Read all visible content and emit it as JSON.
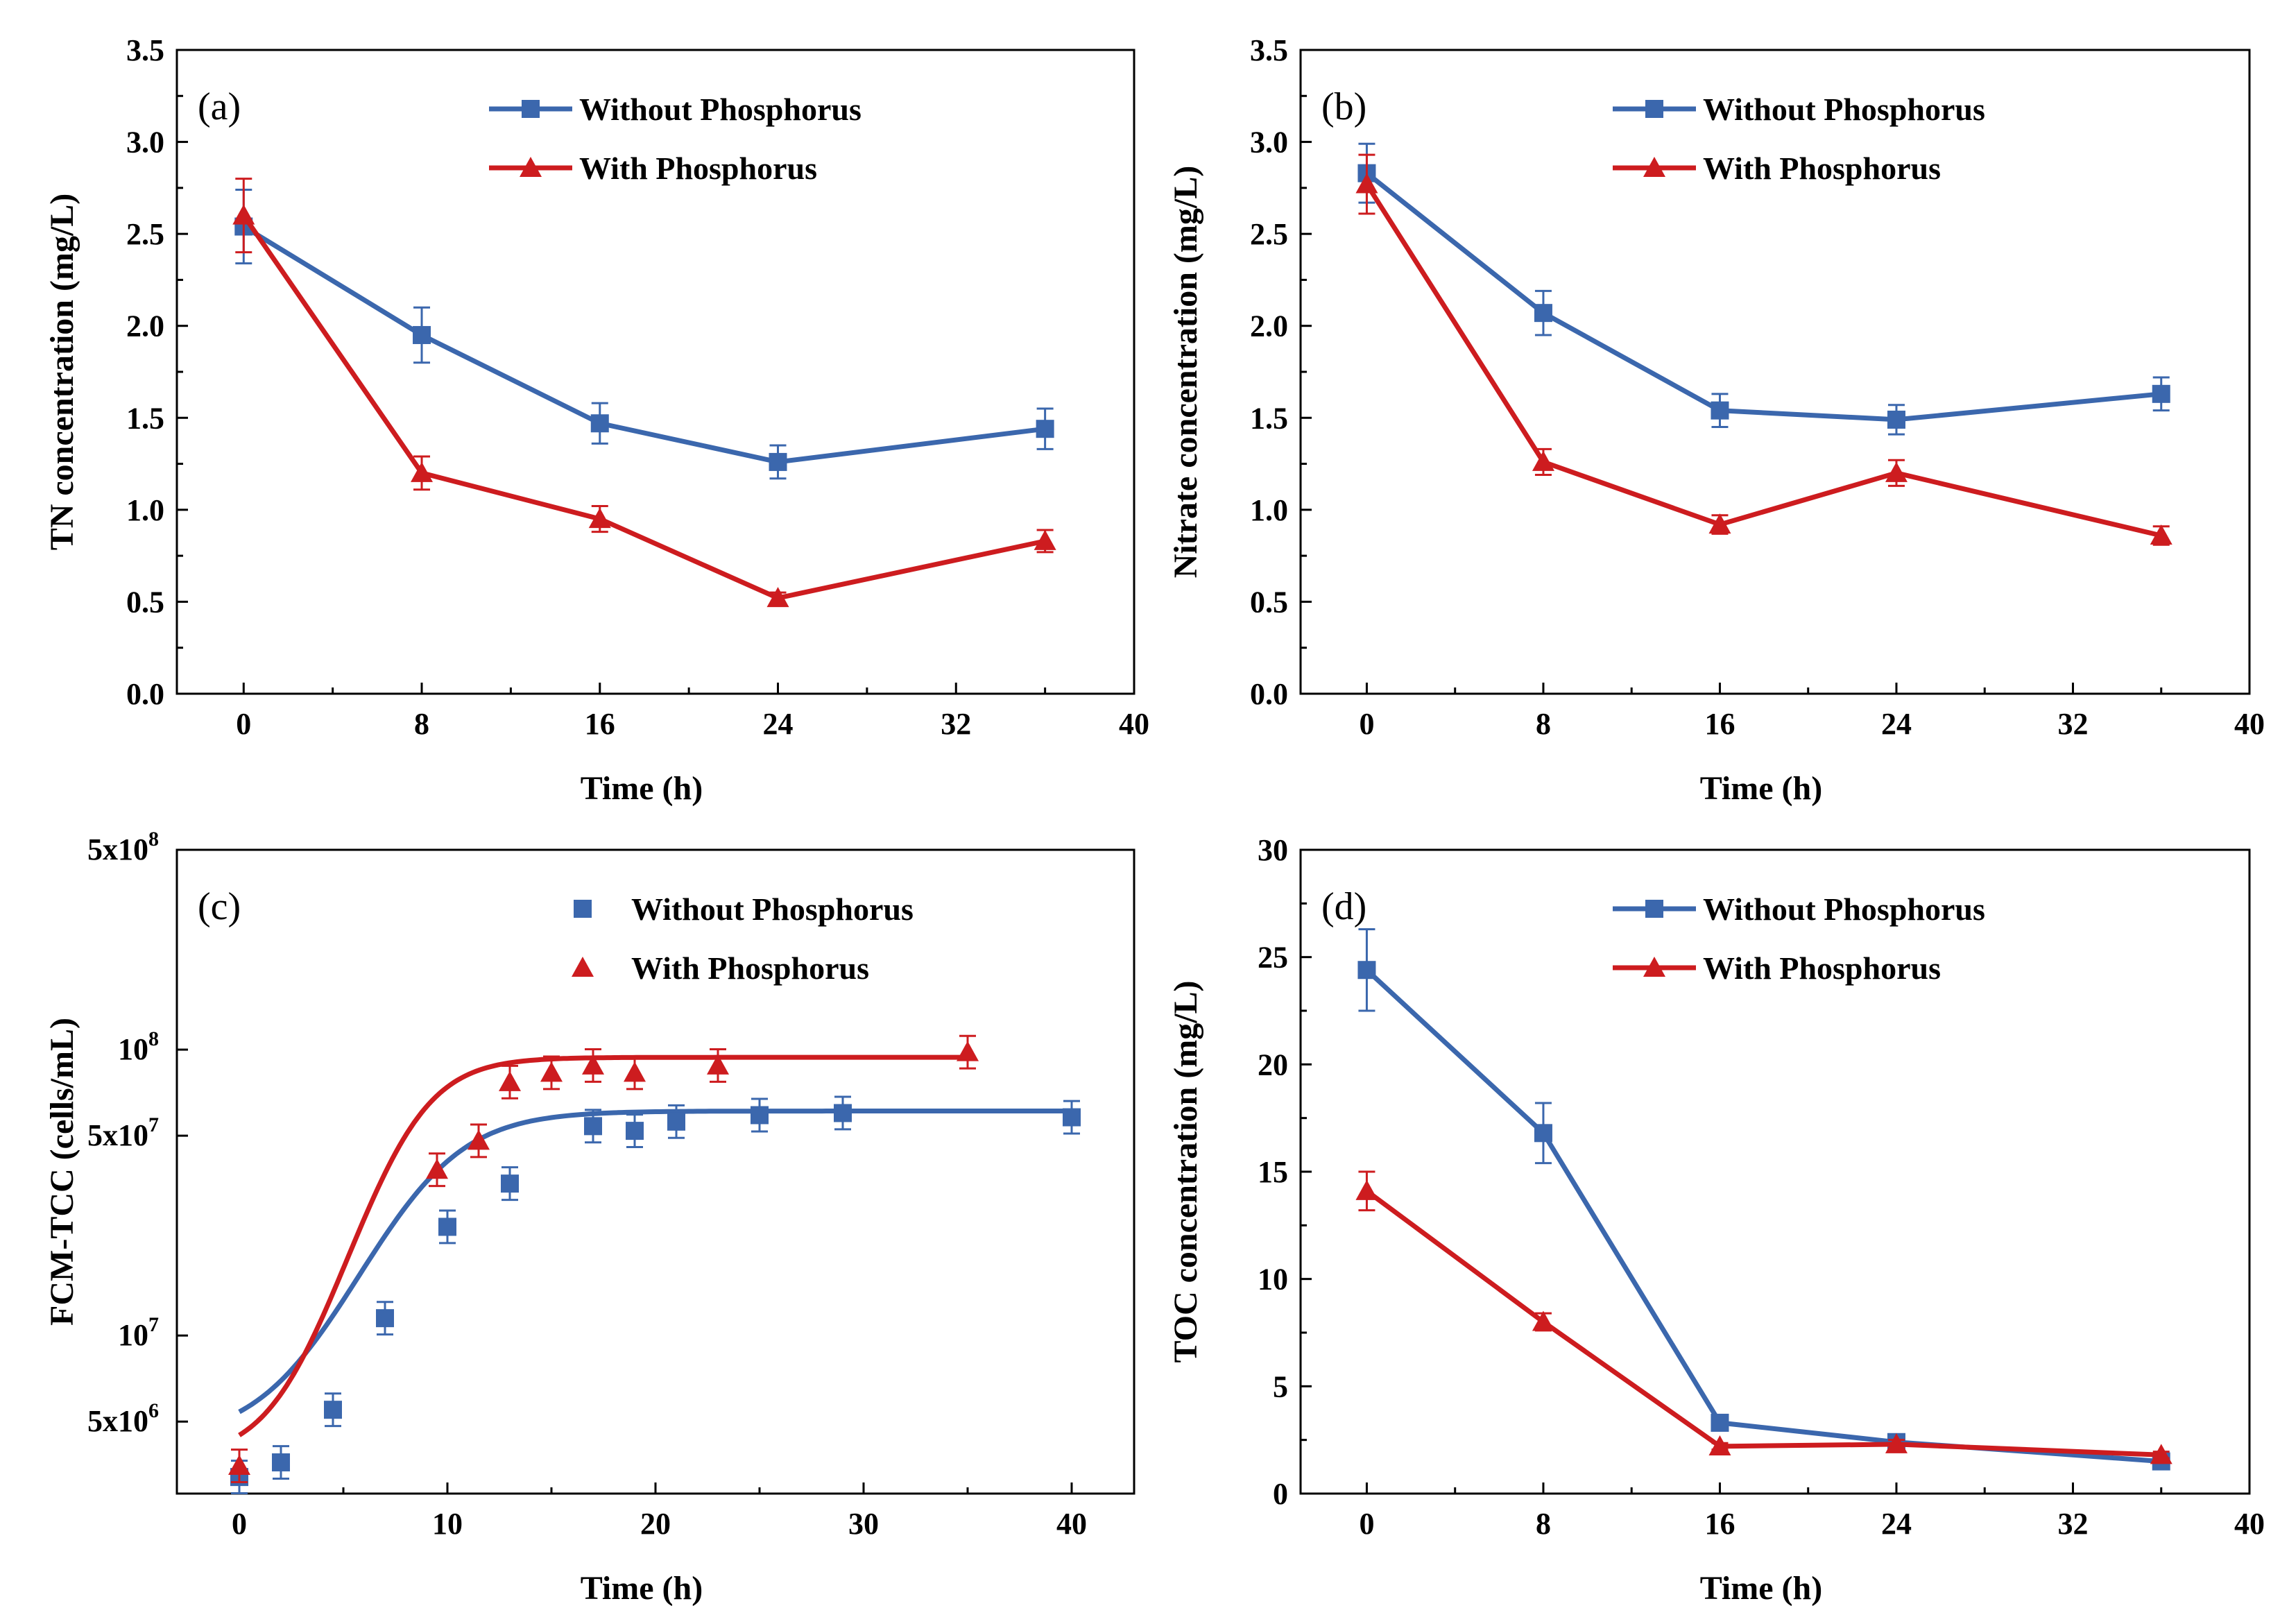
{
  "colors": {
    "without": "#3b67ad",
    "with": "#cd1c1f"
  },
  "chart_data": [
    {
      "type": "line",
      "panel_label": "(a)",
      "xlabel": "Time (h)",
      "ylabel": "TN concentration (mg/L)",
      "xlim": [
        -3,
        40
      ],
      "ylim": [
        0,
        3.5
      ],
      "xticks": [
        "0",
        "8",
        "16",
        "24",
        "32",
        "40"
      ],
      "yticks": [
        "0.0",
        "0.5",
        "1.0",
        "1.5",
        "2.0",
        "2.5",
        "3.0",
        "3.5"
      ],
      "series": [
        {
          "name": "Without Phosphorus",
          "x": [
            0,
            8,
            16,
            24,
            36
          ],
          "values": [
            2.54,
            1.95,
            1.47,
            1.26,
            1.44
          ],
          "errors": [
            0.2,
            0.15,
            0.11,
            0.09,
            0.11
          ]
        },
        {
          "name": "With Phosphorus",
          "x": [
            0,
            8,
            16,
            24,
            36
          ],
          "values": [
            2.6,
            1.2,
            0.95,
            0.52,
            0.83
          ],
          "errors": [
            0.2,
            0.09,
            0.07,
            0.03,
            0.06
          ]
        }
      ]
    },
    {
      "type": "line",
      "panel_label": "(b)",
      "xlabel": "Time (h)",
      "ylabel": "Nitrate concentration (mg/L)",
      "xlim": [
        -3,
        40
      ],
      "ylim": [
        0,
        3.5
      ],
      "xticks": [
        "0",
        "8",
        "16",
        "24",
        "32",
        "40"
      ],
      "yticks": [
        "0.0",
        "0.5",
        "1.0",
        "1.5",
        "2.0",
        "2.5",
        "3.0",
        "3.5"
      ],
      "series": [
        {
          "name": "Without Phosphorus",
          "x": [
            0,
            8,
            16,
            24,
            36
          ],
          "values": [
            2.83,
            2.07,
            1.54,
            1.49,
            1.63
          ],
          "errors": [
            0.16,
            0.12,
            0.09,
            0.08,
            0.09
          ]
        },
        {
          "name": "With Phosphorus",
          "x": [
            0,
            8,
            16,
            24,
            36
          ],
          "values": [
            2.77,
            1.26,
            0.92,
            1.2,
            0.86
          ],
          "errors": [
            0.16,
            0.07,
            0.05,
            0.07,
            0.05
          ]
        }
      ]
    },
    {
      "type": "scatter",
      "panel_label": "(c)",
      "xlabel": "Time (h)",
      "ylabel": "FCM-TCC (cells/mL)",
      "yscale": "log",
      "xlim": [
        -3,
        43
      ],
      "ylim": [
        2800000,
        500000000
      ],
      "xticks": [
        "0",
        "10",
        "20",
        "30",
        "40"
      ],
      "yticks": [
        {
          "value": 5000000,
          "base": "5x10",
          "exp": "6"
        },
        {
          "value": 10000000,
          "base": "10",
          "exp": "7"
        },
        {
          "value": 50000000,
          "base": "5x10",
          "exp": "7"
        },
        {
          "value": 100000000,
          "base": "10",
          "exp": "8"
        },
        {
          "value": 500000000,
          "base": "5x10",
          "exp": "8"
        }
      ],
      "series": [
        {
          "name": "Without Phosphorus",
          "x": [
            0,
            2,
            4.5,
            7,
            10,
            13,
            17,
            19,
            21,
            25,
            29,
            40
          ],
          "values": [
            3200000,
            3600000,
            5500000,
            11500000,
            24000000,
            34000000,
            54000000,
            52000000,
            56000000,
            59000000,
            60000000,
            58000000
          ],
          "fit": {
            "base": 4300000,
            "max": 61000000,
            "mid": 8.7,
            "rate": 0.45
          }
        },
        {
          "name": "With Phosphorus",
          "x": [
            0,
            9.5,
            11.5,
            13,
            15,
            17,
            19,
            23,
            35
          ],
          "values": [
            3500000,
            38000000,
            48000000,
            77000000,
            83000000,
            88000000,
            83000000,
            88000000,
            98000000
          ],
          "fit": {
            "base": 3700000,
            "max": 94000000,
            "mid": 7.9,
            "rate": 0.6
          }
        }
      ]
    },
    {
      "type": "line",
      "panel_label": "(d)",
      "xlabel": "Time (h)",
      "ylabel": "TOC concentration (mg/L)",
      "xlim": [
        -3,
        40
      ],
      "ylim": [
        0,
        30
      ],
      "xticks": [
        "0",
        "8",
        "16",
        "24",
        "32",
        "40"
      ],
      "yticks": [
        "0",
        "5",
        "10",
        "15",
        "20",
        "25",
        "30"
      ],
      "series": [
        {
          "name": "Without Phosphorus",
          "x": [
            0,
            8,
            16,
            24,
            36
          ],
          "values": [
            24.4,
            16.8,
            3.3,
            2.4,
            1.5
          ],
          "errors": [
            1.9,
            1.4,
            0.25,
            0.3,
            0.2
          ]
        },
        {
          "name": "With Phosphorus",
          "x": [
            0,
            8,
            16,
            24,
            36
          ],
          "values": [
            14.1,
            8.0,
            2.2,
            2.3,
            1.8
          ],
          "errors": [
            0.9,
            0.4,
            0.15,
            0.2,
            0.15
          ]
        }
      ]
    }
  ]
}
